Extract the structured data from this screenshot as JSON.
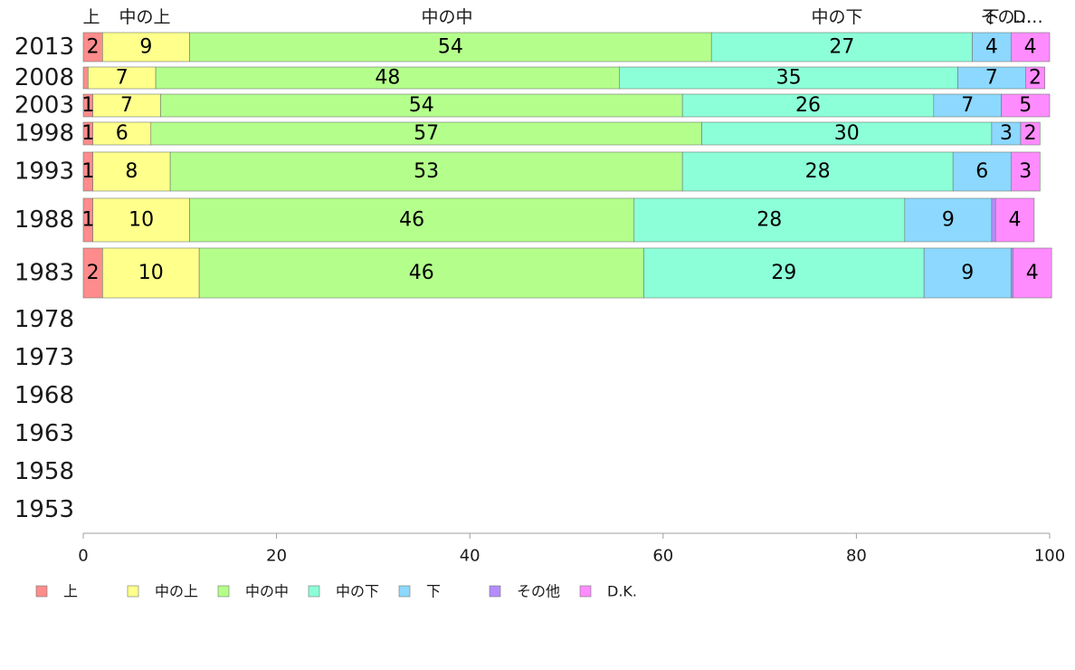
{
  "chart_data": {
    "type": "bar",
    "orientation": "horizontal",
    "stacked": true,
    "title": "",
    "xlabel": "",
    "ylabel": "",
    "xlim": [
      0,
      100
    ],
    "x_ticks": [
      "0",
      "20",
      "40",
      "60",
      "80",
      "100"
    ],
    "grid": false,
    "legend_position": "bottom",
    "categories": [
      "2013",
      "2008",
      "2003",
      "1998",
      "1993",
      "1988",
      "1983",
      "1978",
      "1973",
      "1968",
      "1963",
      "1958",
      "1953"
    ],
    "top_labels": [
      "上",
      "中の上",
      "中の中",
      "中の下",
      "下",
      "その…",
      "D…"
    ],
    "series": [
      {
        "name": "上",
        "color": "#ff8c8c",
        "values": [
          2,
          0.5,
          1,
          1,
          1,
          1,
          2,
          null,
          null,
          null,
          null,
          null,
          null
        ],
        "labels": [
          "2",
          "",
          "1",
          "1",
          "1",
          "1",
          "2",
          "",
          "",
          "",
          "",
          "",
          ""
        ]
      },
      {
        "name": "中の上",
        "color": "#ffff8c",
        "values": [
          9,
          7,
          7,
          6,
          8,
          10,
          10,
          null,
          null,
          null,
          null,
          null,
          null
        ],
        "labels": [
          "9",
          "7",
          "7",
          "6",
          "8",
          "10",
          "10",
          "",
          "",
          "",
          "",
          "",
          ""
        ]
      },
      {
        "name": "中の中",
        "color": "#b4ff8c",
        "values": [
          54,
          48,
          54,
          57,
          53,
          46,
          46,
          null,
          null,
          null,
          null,
          null,
          null
        ],
        "labels": [
          "54",
          "48",
          "54",
          "57",
          "53",
          "46",
          "46",
          "",
          "",
          "",
          "",
          "",
          ""
        ]
      },
      {
        "name": "中の下",
        "color": "#8cffd8",
        "values": [
          27,
          35,
          26,
          30,
          28,
          28,
          29,
          null,
          null,
          null,
          null,
          null,
          null
        ],
        "labels": [
          "27",
          "35",
          "26",
          "30",
          "28",
          "28",
          "29",
          "",
          "",
          "",
          "",
          "",
          ""
        ]
      },
      {
        "name": "下",
        "color": "#8cd8ff",
        "values": [
          4,
          7,
          7,
          3,
          6,
          9,
          9,
          null,
          null,
          null,
          null,
          null,
          null
        ],
        "labels": [
          "4",
          "7",
          "7",
          "3",
          "6",
          "9",
          "9",
          "",
          "",
          "",
          "",
          "",
          ""
        ]
      },
      {
        "name": "その他",
        "color": "#b48cff",
        "values": [
          0,
          0,
          0,
          0,
          0,
          0.4,
          0.2,
          null,
          null,
          null,
          null,
          null,
          null
        ],
        "labels": [
          "",
          "",
          "",
          "",
          "",
          "",
          "",
          "",
          "",
          "",
          "",
          "",
          ""
        ]
      },
      {
        "name": "D.K.",
        "color": "#ff8cff",
        "values": [
          4,
          2,
          5,
          2,
          3,
          4,
          4,
          null,
          null,
          null,
          null,
          null,
          null
        ],
        "labels": [
          "4",
          "2",
          "5",
          "2",
          "3",
          "4",
          "4",
          "",
          "",
          "",
          "",
          "",
          ""
        ]
      }
    ]
  }
}
